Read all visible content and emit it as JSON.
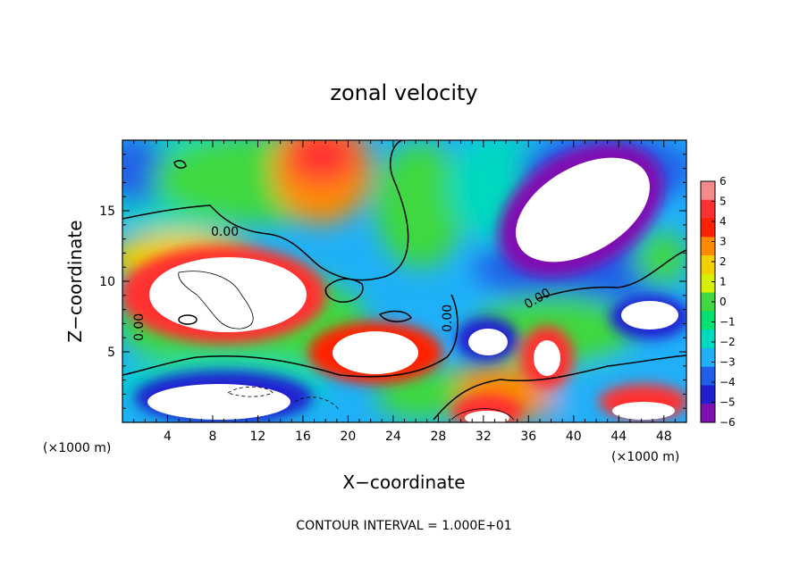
{
  "chart_data": {
    "type": "heatmap",
    "title": "zonal velocity",
    "xlabel": "X−coordinate",
    "ylabel": "Z−coordinate",
    "x_unit": "(×1000 m)",
    "xlim": [
      0,
      50
    ],
    "ylim": [
      0,
      20
    ],
    "x_ticks": [
      4,
      8,
      12,
      16,
      20,
      24,
      28,
      32,
      36,
      40,
      44,
      48
    ],
    "x_tick_labels": [
      "4",
      "8",
      "12",
      "16",
      "20",
      "24",
      "28",
      "32",
      "36",
      "40",
      "44",
      "48"
    ],
    "y_ticks": [
      5,
      10,
      15
    ],
    "y_tick_labels": [
      "5",
      "10",
      "15"
    ],
    "colorbar": {
      "levels": [
        6,
        5,
        4,
        3,
        2,
        1,
        0,
        -1,
        -2,
        -3,
        -4,
        -5,
        -6
      ],
      "labels": [
        "6",
        "5",
        "4",
        "3",
        "2",
        "1",
        "0",
        "−1",
        "−2",
        "−3",
        "−4",
        "−5",
        "−6"
      ],
      "colors": [
        "#f48a8a",
        "#ff3030",
        "#ff2000",
        "#ff8a00",
        "#f5d000",
        "#d8f000",
        "#40d840",
        "#00e070",
        "#00d8c0",
        "#20b0f8",
        "#2060e8",
        "#2020d0",
        "#8010b0"
      ]
    },
    "contour_labels": [
      "0.00",
      "0.00",
      "0.00",
      "0.00"
    ],
    "contour_interval": "CONTOUR INTERVAL = 1.000E+01",
    "out_of_range_color": "#ffffff"
  }
}
